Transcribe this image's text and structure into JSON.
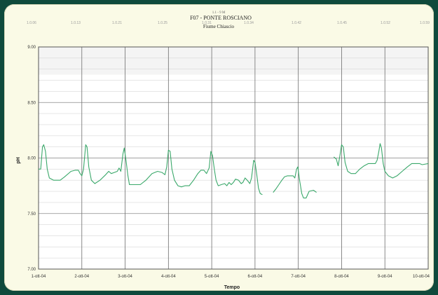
{
  "chart_data": {
    "type": "line",
    "title_small": "1.1 - 9 M",
    "title": "F07 - PONTE ROSCIANO",
    "subtitle": "Fiume Chiascio",
    "xlabel": "Tempo",
    "ylabel": "pH",
    "x_range": [
      1,
      10
    ],
    "ylim": [
      7.0,
      9.0
    ],
    "y_ticks": [
      7.0,
      7.5,
      8.0,
      8.5,
      9.0
    ],
    "y_tick_labels": [
      "7.00",
      "7.50",
      "8.00",
      "8.50",
      "9.00"
    ],
    "x_ticks": [
      1,
      2,
      3,
      4,
      5,
      6,
      7,
      8,
      9,
      10
    ],
    "x_tick_labels": [
      "1-ott-04",
      "2-ott-04",
      "3-ott-04",
      "4-ott-04",
      "5-ott-04",
      "6-ott-04",
      "7-ott-04",
      "8-ott-04",
      "9-ott-04",
      "10-ott-04"
    ],
    "top_tick_labels": [
      "1.0.06",
      "1.0.13",
      "1.0.21",
      "1.0.25",
      "1.0.31",
      "1.0.34",
      "1.0.42",
      "1.0.45",
      "1.0.52",
      "1.0.59"
    ],
    "grid": true,
    "line_color": "#3aa86a",
    "series": [
      {
        "segments": [
          [
            [
              1.0,
              7.9
            ],
            [
              1.05,
              7.9
            ],
            [
              1.09,
              8.1
            ],
            [
              1.12,
              8.12
            ],
            [
              1.16,
              8.06
            ],
            [
              1.2,
              7.9
            ],
            [
              1.25,
              7.82
            ],
            [
              1.35,
              7.8
            ],
            [
              1.5,
              7.8
            ],
            [
              1.6,
              7.83
            ],
            [
              1.75,
              7.88
            ],
            [
              1.85,
              7.89
            ],
            [
              1.92,
              7.89
            ],
            [
              1.96,
              7.86
            ],
            [
              2.0,
              7.84
            ],
            [
              2.04,
              7.9
            ],
            [
              2.09,
              8.12
            ],
            [
              2.12,
              8.1
            ],
            [
              2.16,
              7.92
            ],
            [
              2.22,
              7.8
            ],
            [
              2.3,
              7.77
            ],
            [
              2.42,
              7.8
            ],
            [
              2.55,
              7.85
            ],
            [
              2.62,
              7.88
            ],
            [
              2.68,
              7.86
            ],
            [
              2.75,
              7.87
            ],
            [
              2.82,
              7.88
            ],
            [
              2.86,
              7.91
            ],
            [
              2.9,
              7.88
            ],
            [
              2.95,
              8.04
            ],
            [
              2.98,
              8.09
            ],
            [
              3.02,
              7.98
            ],
            [
              3.06,
              7.85
            ],
            [
              3.1,
              7.76
            ],
            [
              3.2,
              7.76
            ],
            [
              3.35,
              7.76
            ],
            [
              3.48,
              7.8
            ],
            [
              3.62,
              7.86
            ],
            [
              3.75,
              7.88
            ],
            [
              3.85,
              7.87
            ],
            [
              3.92,
              7.85
            ],
            [
              3.96,
              7.92
            ],
            [
              4.0,
              8.07
            ],
            [
              4.04,
              8.06
            ],
            [
              4.08,
              7.9
            ],
            [
              4.14,
              7.8
            ],
            [
              4.22,
              7.75
            ],
            [
              4.3,
              7.74
            ],
            [
              4.38,
              7.75
            ],
            [
              4.48,
              7.75
            ],
            [
              4.58,
              7.8
            ],
            [
              4.68,
              7.86
            ],
            [
              4.75,
              7.89
            ],
            [
              4.82,
              7.89
            ],
            [
              4.88,
              7.86
            ],
            [
              4.94,
              7.91
            ],
            [
              4.98,
              8.06
            ],
            [
              5.02,
              8.02
            ],
            [
              5.06,
              7.9
            ],
            [
              5.1,
              7.8
            ],
            [
              5.15,
              7.75
            ],
            [
              5.22,
              7.76
            ],
            [
              5.3,
              7.77
            ],
            [
              5.35,
              7.75
            ],
            [
              5.4,
              7.78
            ],
            [
              5.45,
              7.76
            ],
            [
              5.5,
              7.78
            ],
            [
              5.55,
              7.81
            ],
            [
              5.62,
              7.8
            ],
            [
              5.68,
              7.77
            ],
            [
              5.72,
              7.78
            ],
            [
              5.77,
              7.82
            ],
            [
              5.82,
              7.8
            ],
            [
              5.88,
              7.77
            ],
            [
              5.92,
              7.82
            ],
            [
              5.97,
              7.98
            ],
            [
              6.0,
              7.96
            ],
            [
              6.04,
              7.85
            ],
            [
              6.08,
              7.73
            ],
            [
              6.12,
              7.68
            ],
            [
              6.17,
              7.67
            ]
          ],
          [
            [
              6.42,
              7.69
            ],
            [
              6.48,
              7.72
            ],
            [
              6.55,
              7.76
            ],
            [
              6.62,
              7.8
            ],
            [
              6.68,
              7.83
            ],
            [
              6.75,
              7.84
            ],
            [
              6.82,
              7.84
            ],
            [
              6.88,
              7.84
            ],
            [
              6.92,
              7.82
            ],
            [
              6.96,
              7.9
            ],
            [
              6.99,
              7.92
            ],
            [
              7.03,
              7.8
            ],
            [
              7.08,
              7.68
            ],
            [
              7.12,
              7.64
            ],
            [
              7.18,
              7.64
            ],
            [
              7.25,
              7.7
            ],
            [
              7.35,
              7.71
            ],
            [
              7.42,
              7.69
            ]
          ],
          [
            [
              7.82,
              8.01
            ],
            [
              7.88,
              7.99
            ],
            [
              7.92,
              7.93
            ],
            [
              7.96,
              8.02
            ],
            [
              8.0,
              8.12
            ],
            [
              8.04,
              8.1
            ],
            [
              8.08,
              7.96
            ],
            [
              8.14,
              7.88
            ],
            [
              8.22,
              7.86
            ],
            [
              8.32,
              7.86
            ],
            [
              8.42,
              7.9
            ],
            [
              8.52,
              7.93
            ],
            [
              8.62,
              7.95
            ],
            [
              8.72,
              7.95
            ],
            [
              8.78,
              7.95
            ],
            [
              8.82,
              7.98
            ],
            [
              8.86,
              8.06
            ],
            [
              8.89,
              8.13
            ],
            [
              8.92,
              8.09
            ],
            [
              8.96,
              7.95
            ],
            [
              9.0,
              7.88
            ],
            [
              9.08,
              7.84
            ],
            [
              9.18,
              7.82
            ],
            [
              9.28,
              7.84
            ],
            [
              9.4,
              7.88
            ],
            [
              9.52,
              7.92
            ],
            [
              9.62,
              7.95
            ],
            [
              9.72,
              7.95
            ],
            [
              9.8,
              7.95
            ],
            [
              9.86,
              7.94
            ],
            [
              10.0,
              7.95
            ]
          ]
        ]
      }
    ]
  }
}
